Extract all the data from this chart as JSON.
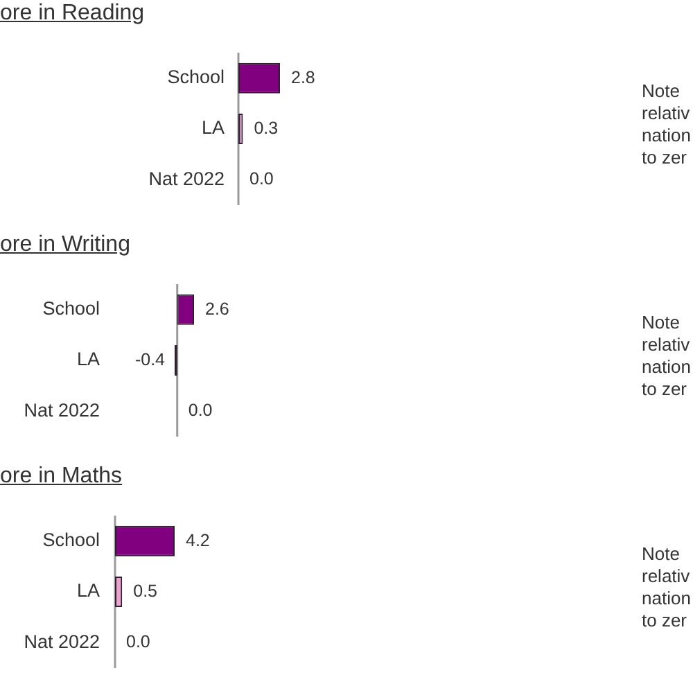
{
  "chart_data": [
    {
      "type": "bar",
      "orientation": "horizontal",
      "title": "ore in Reading",
      "categories": [
        "School",
        "LA",
        "Nat 2022"
      ],
      "values": [
        2.8,
        0.3,
        0
      ],
      "colors": [
        "#800080",
        "#c48cb6",
        "#c48cb6"
      ],
      "value_labels": [
        "2.8",
        "0.3",
        "0.0"
      ],
      "annotations": [
        "Note",
        "relativ",
        "nation",
        "to zer"
      ]
    },
    {
      "type": "bar",
      "orientation": "horizontal",
      "title": "ore in Writing",
      "categories": [
        "School",
        "LA",
        "Nat 2022"
      ],
      "values": [
        2.6,
        -0.4,
        0
      ],
      "colors": [
        "#800080",
        "#2e1f2e",
        "#2e1f2e"
      ],
      "value_labels": [
        "2.6",
        "-0.4",
        "0.0"
      ],
      "annotations": [
        "Note",
        "relativ",
        "nation",
        "to zer"
      ]
    },
    {
      "type": "bar",
      "orientation": "horizontal",
      "title": "ore in Maths",
      "categories": [
        "School",
        "LA",
        "Nat 2022"
      ],
      "values": [
        4.2,
        0.5,
        0
      ],
      "colors": [
        "#800080",
        "#eca2cf",
        "#eca2cf"
      ],
      "value_labels": [
        "4.2",
        "0.5",
        "0.0"
      ],
      "annotations": [
        "Note",
        "relativ",
        "nation",
        "to zer"
      ]
    }
  ]
}
